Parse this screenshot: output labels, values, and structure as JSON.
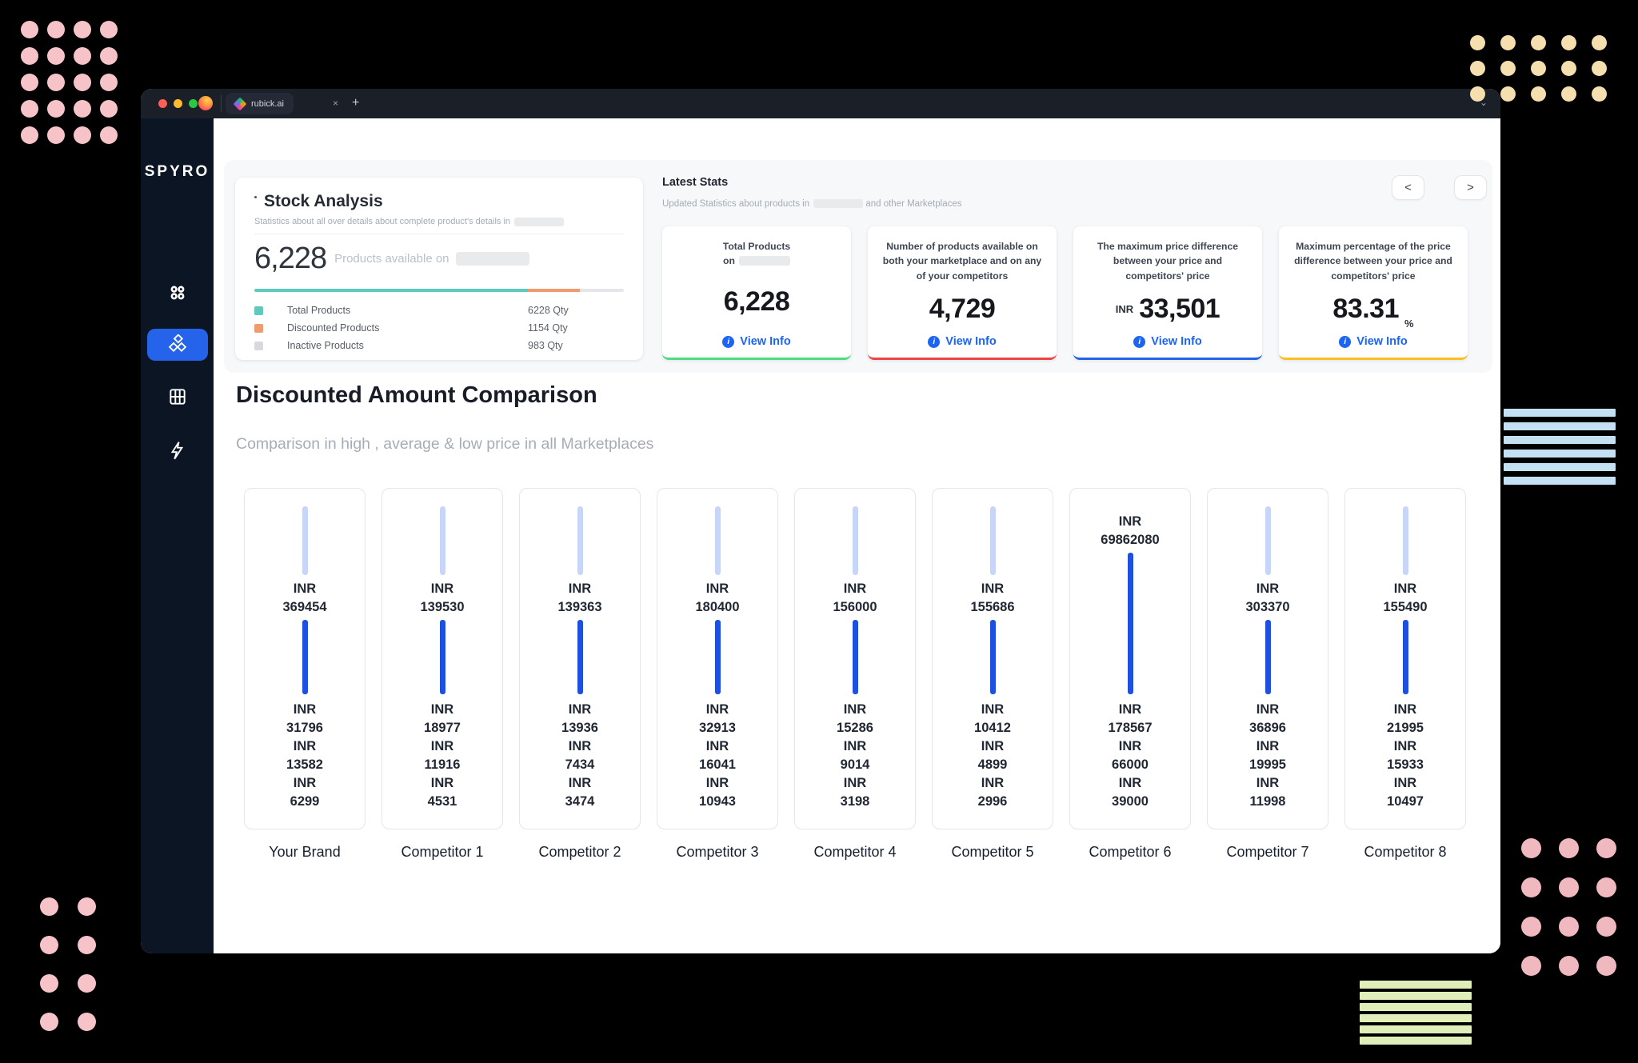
{
  "browser": {
    "tab_title": "rubick.ai",
    "close_label": "×",
    "new_tab_label": "+",
    "menu_chevron": "⌄"
  },
  "sidebar": {
    "logo": "SPYRO"
  },
  "stock_analysis": {
    "title": "Stock Analysis",
    "subtitle": "Statistics about all over details about complete product's details in",
    "total": "6,228",
    "total_caption": "Products available on",
    "bar_segments": [
      {
        "color": "#5fc8bf",
        "pct": 74
      },
      {
        "color": "#f09a70",
        "pct": 14
      },
      {
        "color": "#e4e6e9",
        "pct": 12
      }
    ],
    "legend": [
      {
        "label": "Total Products",
        "qty": "6228 Qty",
        "color": "#5fc8bf"
      },
      {
        "label": "Discounted Products",
        "qty": "1154 Qty",
        "color": "#f09a70"
      },
      {
        "label": "Inactive Products",
        "qty": "983 Qty",
        "color": "#d7d9dc"
      }
    ]
  },
  "latest_stats": {
    "title": "Latest Stats",
    "subtitle_prefix": "Updated Statistics about products in",
    "subtitle_suffix": "and other Marketplaces",
    "prev_label": "<",
    "next_label": ">",
    "cards": [
      {
        "label": "Total Products",
        "label2": "on",
        "redacted": true,
        "prefix": "",
        "value": "6,228",
        "suffix": "",
        "accent": "#4ade80",
        "cta": "View Info"
      },
      {
        "label": "Number of products available on both your marketplace and on any of your competitors",
        "label2": "",
        "redacted": false,
        "prefix": "",
        "value": "4,729",
        "suffix": "",
        "accent": "#ef4444",
        "cta": "View Info"
      },
      {
        "label": "The maximum price difference between your price and competitors' price",
        "label2": "",
        "redacted": false,
        "prefix": "INR",
        "value": "33,501",
        "suffix": "",
        "accent": "#2563eb",
        "cta": "View Info"
      },
      {
        "label": "Maximum percentage of the price difference between your price and competitors' price",
        "label2": "",
        "redacted": false,
        "prefix": "",
        "value": "83.31",
        "suffix": "%",
        "accent": "#fbbf24",
        "cta": "View Info"
      }
    ]
  },
  "comparison": {
    "title": "Discounted Amount Comparison",
    "subtitle": "Comparison in high , average & low price in all Marketplaces",
    "currency": "INR",
    "cards": [
      {
        "label": "Your Brand",
        "high": "369454",
        "values": [
          "31796",
          "13582",
          "6299"
        ],
        "top_bar": true
      },
      {
        "label": "Competitor 1",
        "high": "139530",
        "values": [
          "18977",
          "11916",
          "4531"
        ],
        "top_bar": true
      },
      {
        "label": "Competitor 2",
        "high": "139363",
        "values": [
          "13936",
          "7434",
          "3474"
        ],
        "top_bar": true
      },
      {
        "label": "Competitor 3",
        "high": "180400",
        "values": [
          "32913",
          "16041",
          "10943"
        ],
        "top_bar": true
      },
      {
        "label": "Competitor 4",
        "high": "156000",
        "values": [
          "15286",
          "9014",
          "3198"
        ],
        "top_bar": true
      },
      {
        "label": "Competitor 5",
        "high": "155686",
        "values": [
          "10412",
          "4899",
          "2996"
        ],
        "top_bar": true
      },
      {
        "label": "Competitor 6",
        "high": "69862080",
        "values": [
          "178567",
          "66000",
          "39000"
        ],
        "top_bar": false
      },
      {
        "label": "Competitor 7",
        "high": "303370",
        "values": [
          "36896",
          "19995",
          "11998"
        ],
        "top_bar": true
      },
      {
        "label": "Competitor 8",
        "high": "155490",
        "values": [
          "21995",
          "15933",
          "10497"
        ],
        "top_bar": true
      }
    ]
  }
}
